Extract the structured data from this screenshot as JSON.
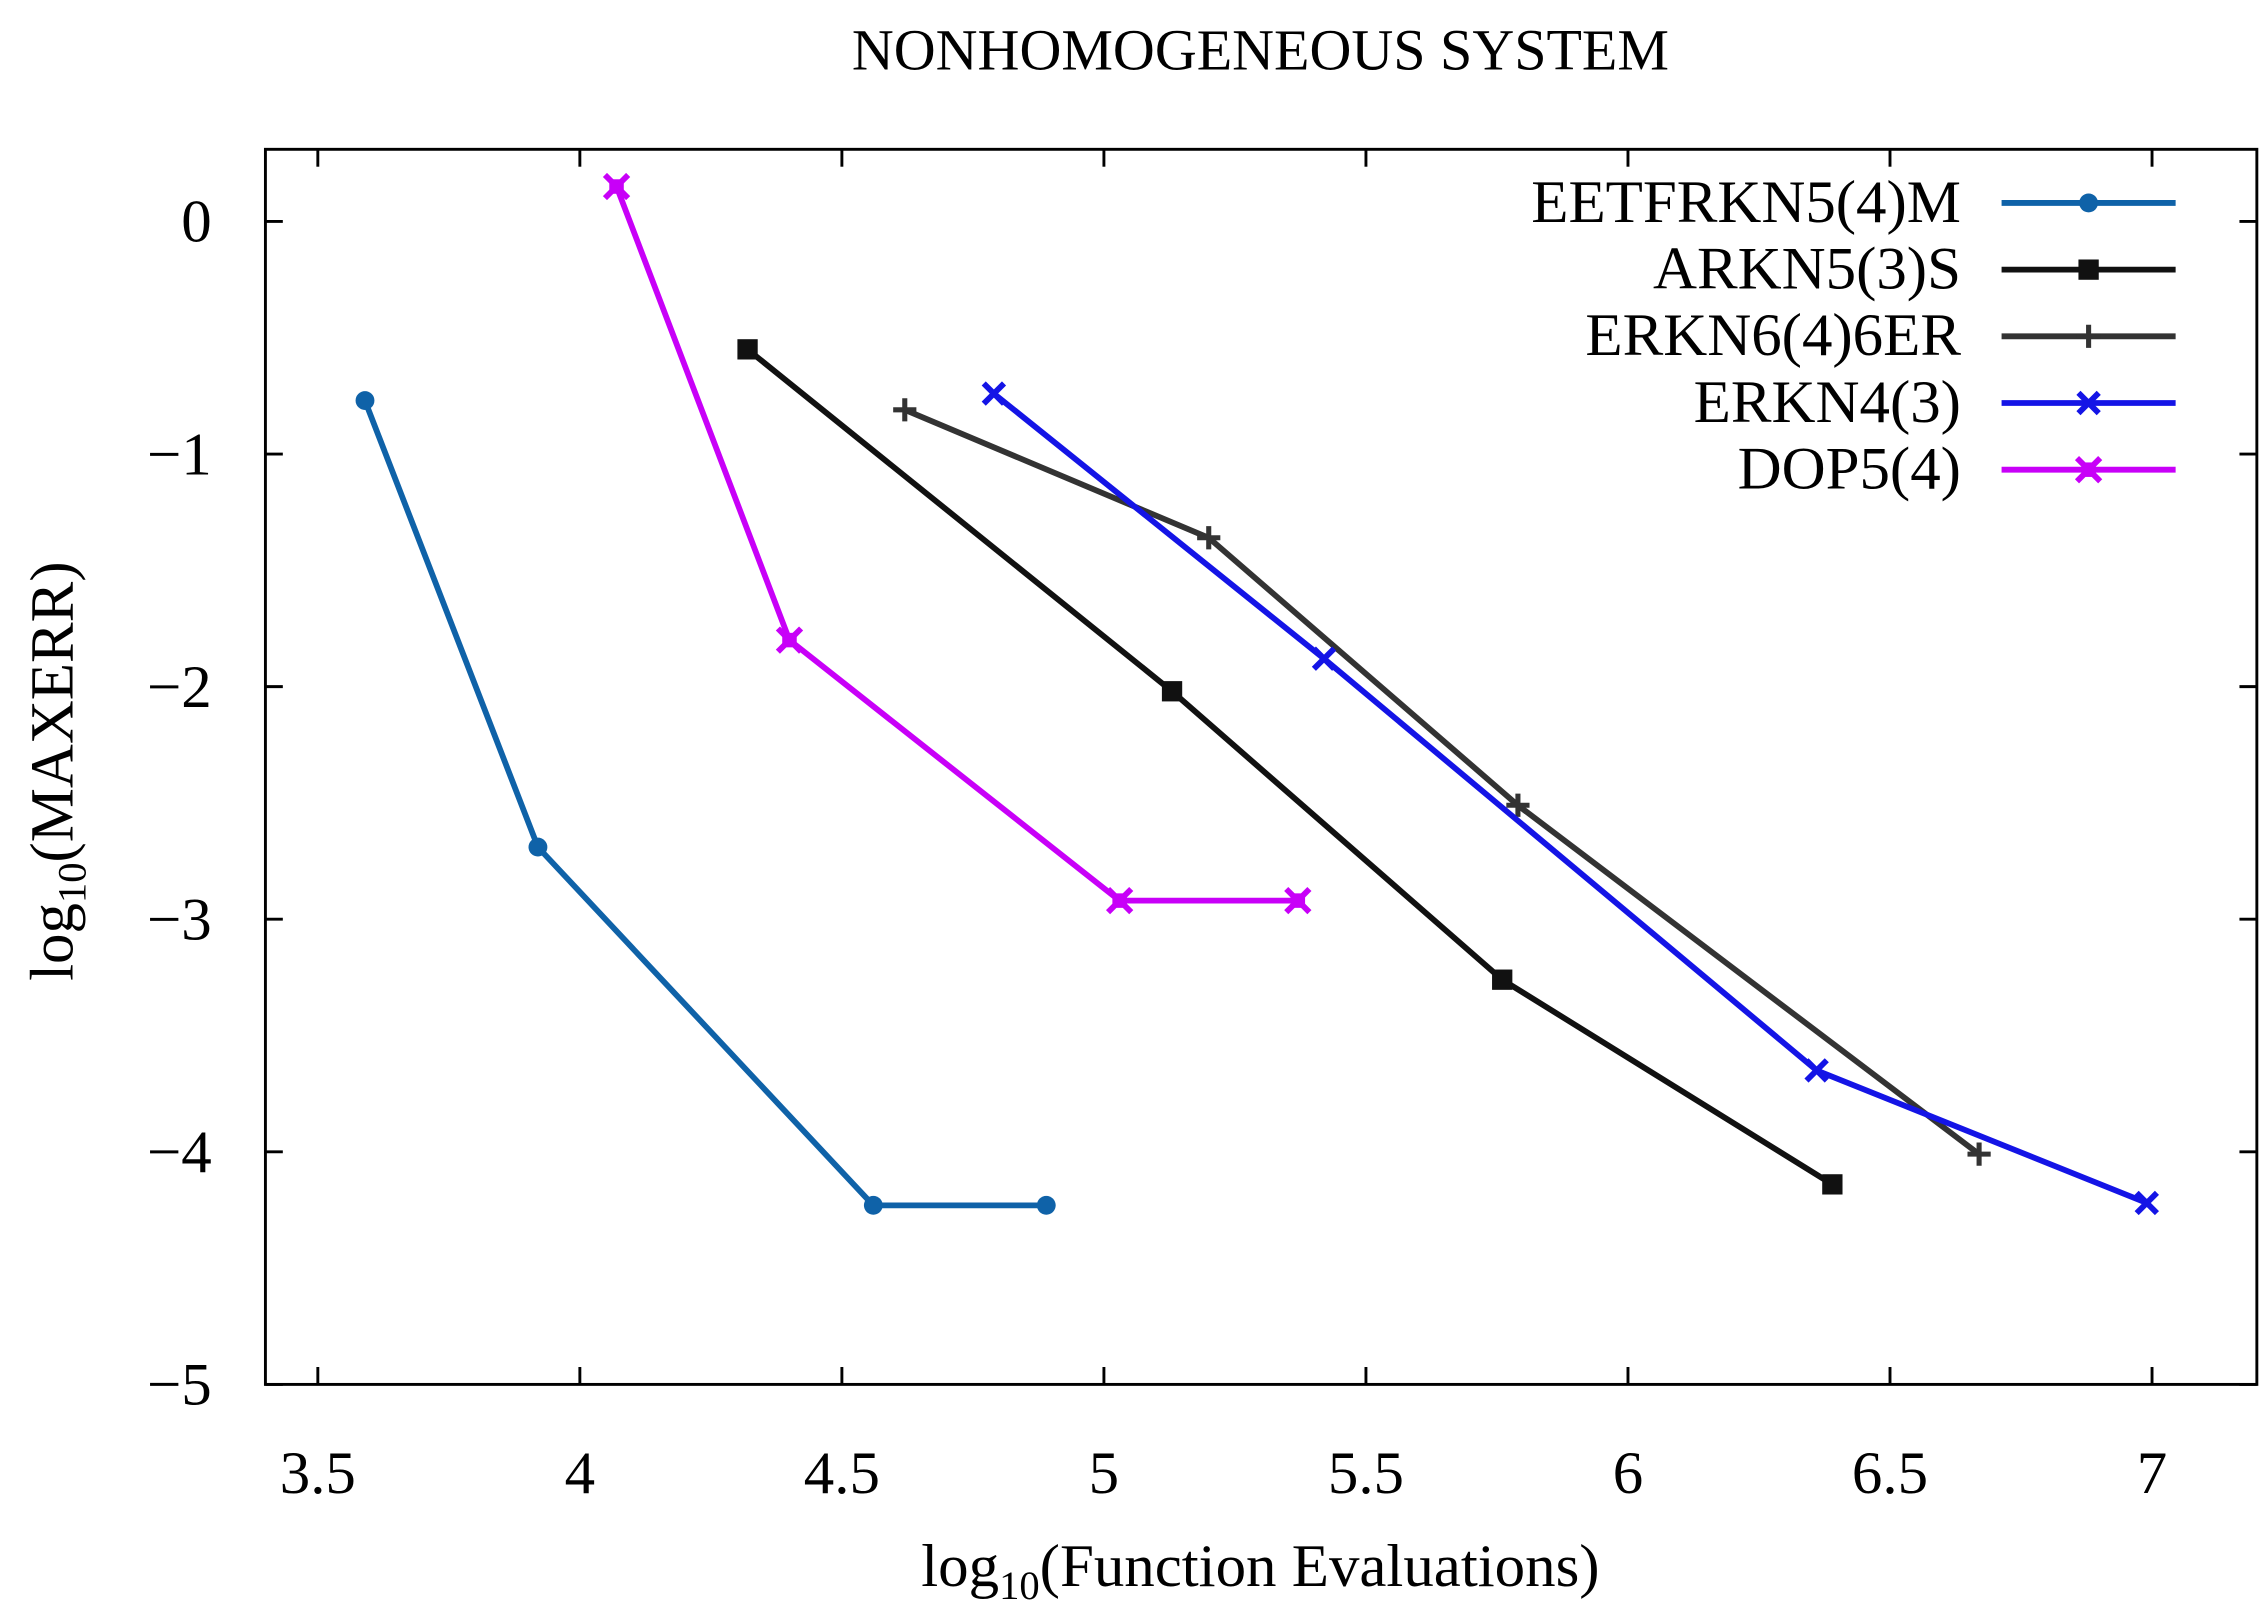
{
  "chart_data": {
    "type": "line",
    "title": "NONHOMOGENEOUS SYSTEM",
    "xlabel": {
      "log": "log",
      "sub": "10",
      "text": "(Function Evaluations)"
    },
    "ylabel": {
      "log": "log",
      "sub": "10",
      "text": "(MAXERR)"
    },
    "xlim": [
      3.4,
      7.2
    ],
    "ylim": [
      -5,
      0.31
    ],
    "xticks": [
      3.5,
      4,
      4.5,
      5,
      5.5,
      6,
      6.5,
      7
    ],
    "xtick_labels": [
      "3.5",
      "4",
      "4.5",
      "5",
      "5.5",
      "6",
      "6.5",
      "7"
    ],
    "yticks": [
      0,
      -1,
      -2,
      -3,
      -4,
      -5
    ],
    "ytick_labels": [
      "0",
      "−1",
      "−2",
      "−3",
      "−4",
      "−5"
    ],
    "grid": false,
    "legend_position": "top-right",
    "series": [
      {
        "name": "EETFRKN5(4)M",
        "color": "#0f62a8",
        "marker": "circle",
        "x": [
          3.59,
          3.92,
          4.56,
          4.89
        ],
        "y": [
          -0.77,
          -2.69,
          -4.23,
          -4.23
        ]
      },
      {
        "name": "ARKN5(3)S",
        "color": "#111111",
        "marker": "square",
        "x": [
          4.32,
          5.13,
          5.76,
          6.39
        ],
        "y": [
          -0.55,
          -2.02,
          -3.26,
          -4.14
        ]
      },
      {
        "name": "ERKN6(4)6ER",
        "color": "#333333",
        "marker": "plus",
        "x": [
          4.62,
          5.2,
          5.79,
          6.67
        ],
        "y": [
          -0.81,
          -1.36,
          -2.51,
          -4.01
        ]
      },
      {
        "name": "ERKN4(3)",
        "color": "#1414e6",
        "marker": "cross",
        "x": [
          4.79,
          5.42,
          6.36,
          6.99
        ],
        "y": [
          -0.74,
          -1.88,
          -3.65,
          -4.22
        ]
      },
      {
        "name": "DOP5(4)",
        "color": "#c800f8",
        "marker": "cross-box",
        "x": [
          4.07,
          4.4,
          5.03,
          5.37
        ],
        "y": [
          0.15,
          -1.8,
          -2.92,
          -2.92
        ]
      }
    ]
  }
}
